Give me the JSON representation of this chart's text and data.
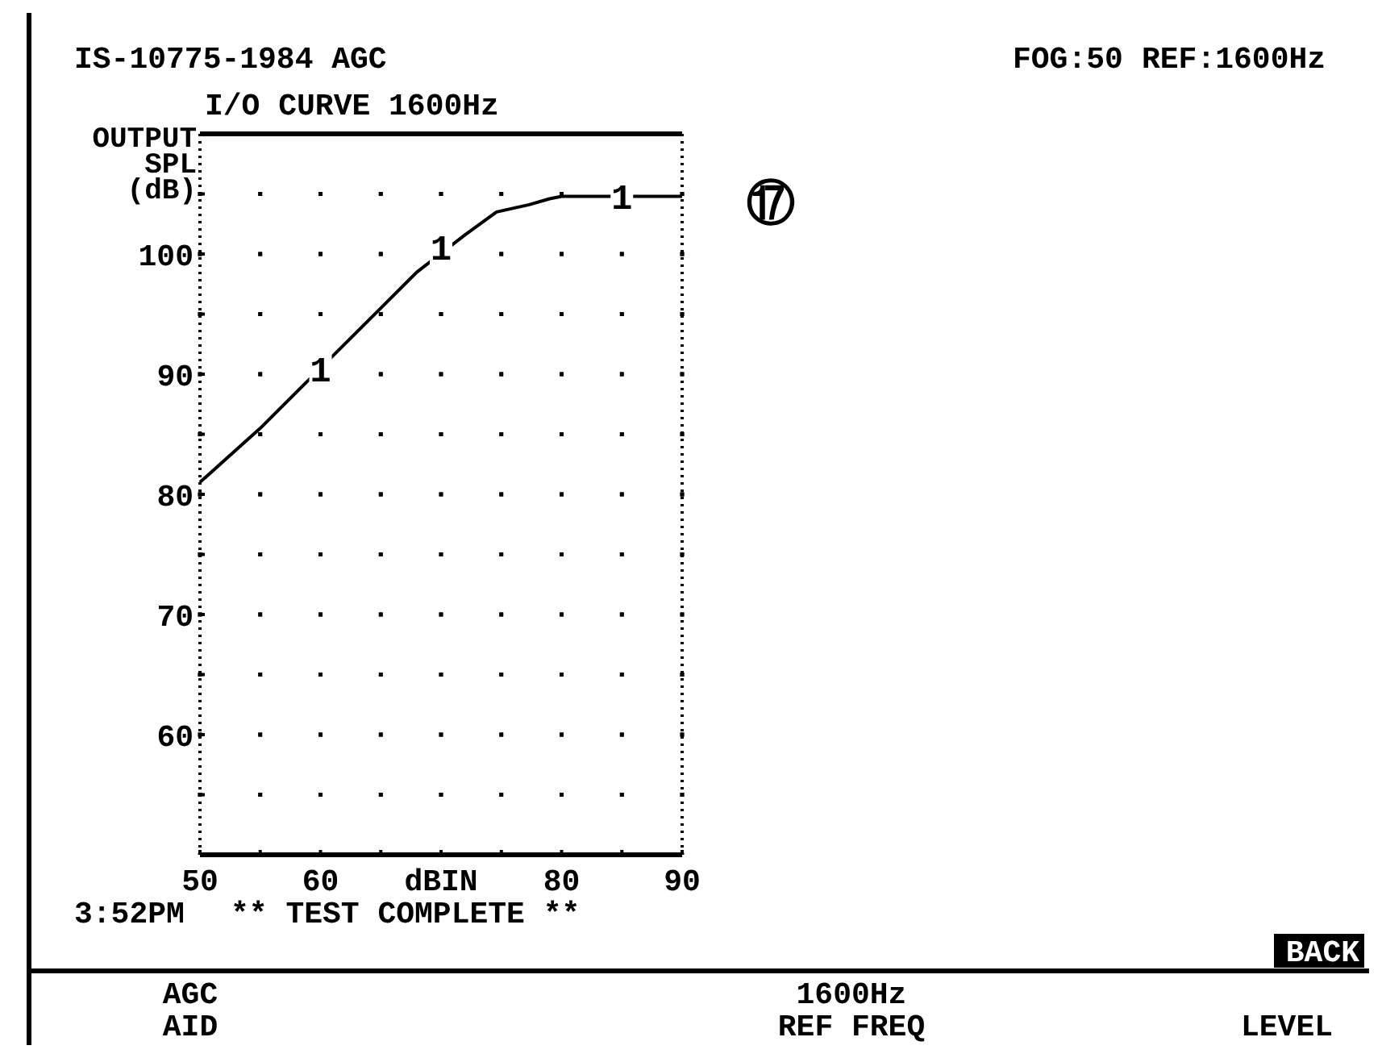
{
  "chart_data": {
    "type": "line",
    "title": "IS-10775-1984   AGC",
    "subtitle": "I/O CURVE  1600Hz",
    "ylabel": "OUTPUT\nSPL\n(dB)",
    "xlabel": "dBIN",
    "xlim": [
      50,
      90
    ],
    "ylim": [
      50,
      110
    ],
    "xticks": [
      50,
      {
        "value": 55,
        "label": null
      },
      60,
      {
        "value": 65,
        "label": null
      },
      {
        "value": 70,
        "label": null
      },
      {
        "value": 75,
        "label": null
      },
      80,
      {
        "value": 85,
        "label": null
      },
      90
    ],
    "yticks": [
      {
        "value": 55,
        "label": null
      },
      60,
      {
        "value": 65,
        "label": null
      },
      70,
      {
        "value": 75,
        "label": null
      },
      80,
      {
        "value": 85,
        "label": null
      },
      90,
      {
        "value": 95,
        "label": null
      },
      100,
      {
        "value": 105,
        "label": null
      }
    ],
    "grid": true,
    "marker": "none",
    "line_style": "solid",
    "series": [
      {
        "color": "#000000",
        "x": [
          50,
          55,
          65,
          68,
          72,
          74.6,
          77.3,
          79,
          80,
          90
        ],
        "values": [
          81,
          85.5,
          95.5,
          98.5,
          101.6,
          103.5,
          104.1,
          104.6,
          104.8,
          104.8
        ]
      }
    ],
    "annotations": [
      {
        "text": "1",
        "x": 60,
        "y": 90.5
      },
      {
        "text": "1",
        "x": 70,
        "y": 100.6
      },
      {
        "text": "1",
        "x": 85,
        "y": 104.8
      },
      "⑰",
      "FOG:50",
      "REF:1600Hz",
      "3:52PM",
      "** TEST COMPLETE **",
      "BACK",
      "AGC\nAID",
      "1600Hz\nREF FREQ",
      "LEVEL"
    ]
  }
}
